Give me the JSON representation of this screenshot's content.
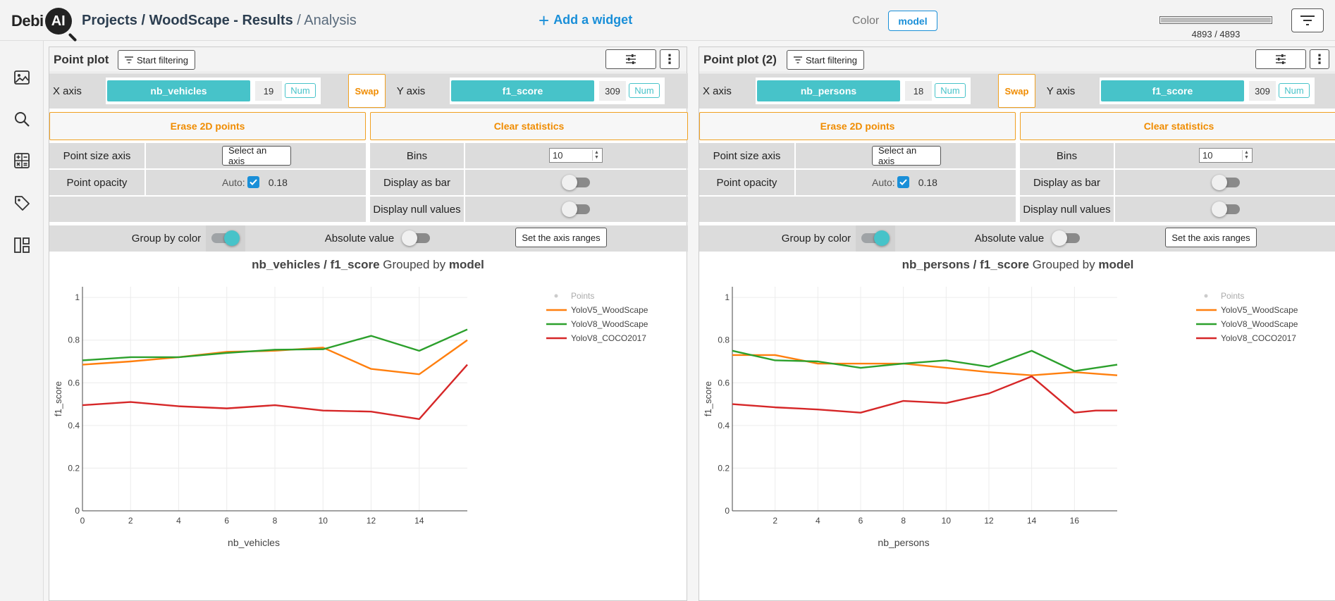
{
  "header": {
    "logo_text": "Debi",
    "logo_mark": "AI",
    "breadcrumb_main": "Projects / WoodScape - Results",
    "breadcrumb_sep": " / ",
    "breadcrumb_current": "Analysis",
    "add_widget_label": "Add a widget",
    "color_label": "Color",
    "color_value": "model",
    "progress_fraction": 1.0,
    "progress_text": "4893 / 4893",
    "filter_icon": "filter-lines-icon"
  },
  "sidebar": {
    "items": [
      {
        "icon": "image-icon"
      },
      {
        "icon": "search-icon"
      },
      {
        "icon": "calculator-icon"
      },
      {
        "icon": "tag-icon"
      },
      {
        "icon": "layout-icon"
      }
    ]
  },
  "colors": {
    "accent_teal": "#47c3c9",
    "orange": "#f08c00",
    "blue": "#1a8fd8",
    "series_yolov5_wood": "#ff7f0e",
    "series_yolov8_wood": "#2ca02c",
    "series_yolov8_coco": "#d62728"
  },
  "widgets": [
    {
      "title": "Point plot",
      "start_filtering": "Start filtering",
      "x_axis_label": "X axis",
      "x_axis_value": "nb_vehicles",
      "x_axis_count": "19",
      "x_axis_type": "Num",
      "swap": "Swap",
      "y_axis_label": "Y axis",
      "y_axis_value": "f1_score",
      "y_axis_count": "309",
      "y_axis_type": "Num",
      "erase": "Erase 2D points",
      "clear": "Clear statistics",
      "point_size_label": "Point size axis",
      "select_axis": "Select an axis",
      "point_opacity_label": "Point opacity",
      "auto_label": "Auto:",
      "opacity_value": "0.18",
      "bins_label": "Bins",
      "bins_value": "10",
      "display_bar_label": "Display as bar",
      "display_null_label": "Display null values",
      "group_color_label": "Group by color",
      "absolute_label": "Absolute value",
      "axis_ranges": "Set the axis ranges",
      "chart_title_x": "nb_vehicles",
      "chart_title_sep": " / ",
      "chart_title_y": "f1_score",
      "chart_title_grouped": " Grouped by ",
      "chart_title_group": "model"
    },
    {
      "title": "Point plot (2)",
      "start_filtering": "Start filtering",
      "x_axis_label": "X axis",
      "x_axis_value": "nb_persons",
      "x_axis_count": "18",
      "x_axis_type": "Num",
      "swap": "Swap",
      "y_axis_label": "Y axis",
      "y_axis_value": "f1_score",
      "y_axis_count": "309",
      "y_axis_type": "Num",
      "erase": "Erase 2D points",
      "clear": "Clear statistics",
      "point_size_label": "Point size axis",
      "select_axis": "Select an axis",
      "point_opacity_label": "Point opacity",
      "auto_label": "Auto:",
      "opacity_value": "0.18",
      "bins_label": "Bins",
      "bins_value": "10",
      "display_bar_label": "Display as bar",
      "display_null_label": "Display null values",
      "group_color_label": "Group by color",
      "absolute_label": "Absolute value",
      "axis_ranges": "Set the axis ranges",
      "chart_title_x": "nb_persons",
      "chart_title_sep": " / ",
      "chart_title_y": "f1_score",
      "chart_title_grouped": " Grouped by ",
      "chart_title_group": "model"
    }
  ],
  "chart_data": [
    {
      "type": "line",
      "xlabel": "nb_vehicles",
      "ylabel": "f1_score",
      "xlim": [
        0,
        16
      ],
      "ylim": [
        0,
        1.05
      ],
      "x_ticks": [
        0,
        2,
        4,
        6,
        8,
        10,
        12,
        14
      ],
      "y_ticks": [
        0,
        0.2,
        0.4,
        0.6,
        0.8,
        1
      ],
      "grid": true,
      "legend_position": "top-right",
      "legend_points_label": "Points",
      "series": [
        {
          "name": "YoloV5_WoodScape",
          "color": "#ff7f0e",
          "x": [
            0,
            2,
            4,
            6,
            8,
            10,
            12,
            14,
            16
          ],
          "y": [
            0.685,
            0.7,
            0.72,
            0.745,
            0.75,
            0.765,
            0.665,
            0.64,
            0.8
          ]
        },
        {
          "name": "YoloV8_WoodScape",
          "color": "#2ca02c",
          "x": [
            0,
            2,
            4,
            6,
            8,
            10,
            12,
            14,
            16
          ],
          "y": [
            0.705,
            0.72,
            0.72,
            0.74,
            0.755,
            0.757,
            0.82,
            0.75,
            0.85
          ]
        },
        {
          "name": "YoloV8_COCO2017",
          "color": "#d62728",
          "x": [
            0,
            2,
            4,
            6,
            8,
            10,
            12,
            14,
            16
          ],
          "y": [
            0.495,
            0.51,
            0.49,
            0.48,
            0.495,
            0.47,
            0.465,
            0.43,
            0.685
          ]
        }
      ]
    },
    {
      "type": "line",
      "xlabel": "nb_persons",
      "ylabel": "f1_score",
      "xlim": [
        0,
        18
      ],
      "ylim": [
        0,
        1.05
      ],
      "x_ticks": [
        2,
        4,
        6,
        8,
        10,
        12,
        14,
        16
      ],
      "y_ticks": [
        0,
        0.2,
        0.4,
        0.6,
        0.8,
        1
      ],
      "grid": true,
      "legend_position": "top-right",
      "legend_points_label": "Points",
      "series": [
        {
          "name": "YoloV5_WoodScape",
          "color": "#ff7f0e",
          "x": [
            0,
            2,
            4,
            6,
            8,
            10,
            12,
            14,
            16,
            18
          ],
          "y": [
            0.73,
            0.73,
            0.69,
            0.69,
            0.69,
            0.67,
            0.65,
            0.635,
            0.65,
            0.635
          ]
        },
        {
          "name": "YoloV8_WoodScape",
          "color": "#2ca02c",
          "x": [
            0,
            2,
            4,
            6,
            8,
            10,
            12,
            14,
            16,
            18
          ],
          "y": [
            0.75,
            0.705,
            0.7,
            0.67,
            0.69,
            0.705,
            0.675,
            0.75,
            0.655,
            0.685
          ]
        },
        {
          "name": "YoloV8_COCO2017",
          "color": "#d62728",
          "x": [
            0,
            2,
            4,
            6,
            8,
            10,
            12,
            14,
            16,
            17,
            18
          ],
          "y": [
            0.5,
            0.485,
            0.475,
            0.46,
            0.515,
            0.505,
            0.55,
            0.63,
            0.46,
            0.47,
            0.47
          ]
        }
      ]
    }
  ]
}
